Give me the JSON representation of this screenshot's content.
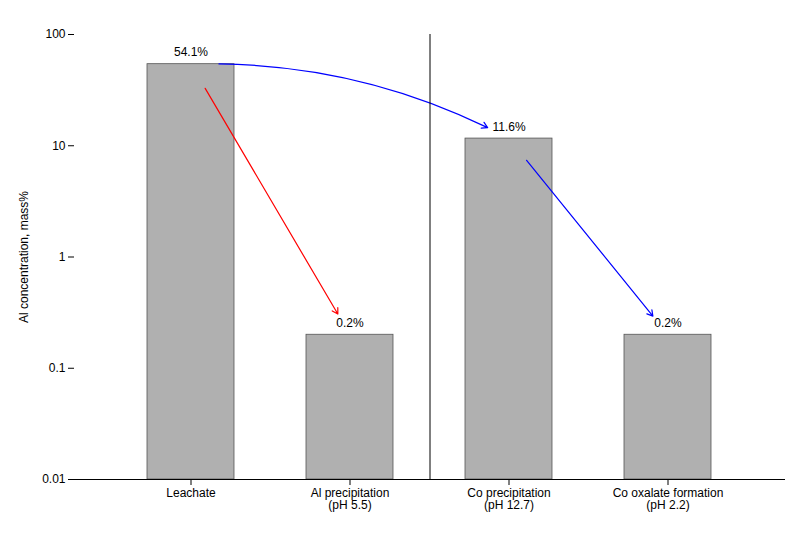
{
  "chart_data": {
    "type": "bar",
    "categories": [
      "Leachate",
      "Al precipitation\n(pH 5.5)",
      "Co precipitation\n(pH 12.7)",
      "Co oxalate formation\n(pH 2.2)"
    ],
    "values": [
      54.1,
      0.2,
      11.6,
      0.2
    ],
    "value_labels": [
      "54.1%",
      "0.2%",
      "11.6%",
      "0.2%"
    ],
    "data_labels": true,
    "color": "#b0b0b0",
    "ylabel": "Al concentration, mass%",
    "log": "y",
    "ylim": [
      0.01,
      100
    ],
    "yticks": [
      0.01,
      0.1,
      1,
      10,
      100
    ],
    "grid": false
  }
}
